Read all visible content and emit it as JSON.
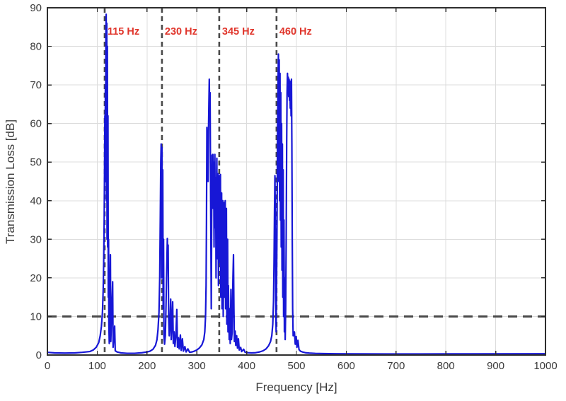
{
  "figure": {
    "xlabel": "Frequency [Hz]",
    "ylabel": "Transmission Loss [dB]",
    "background": "#ffffff"
  },
  "style": {
    "curve_color": "#1717d6",
    "curve_width": 2.2,
    "dash_color": "#4a4a4a",
    "grid_color": "#dcdcdc",
    "spine_color": "#2e2e2e",
    "tick_label_color": "#3a3a3a",
    "annotation_color": "#e0352b",
    "tick_font_size": 15,
    "annotation_font_size": 14.5
  },
  "chart_data": {
    "type": "line",
    "title": "",
    "xlabel": "Frequency [Hz]",
    "ylabel": "Transmission Loss [dB]",
    "xlim": [
      0,
      1000
    ],
    "ylim": [
      0,
      90
    ],
    "xticks": [
      0,
      100,
      200,
      300,
      400,
      500,
      600,
      700,
      800,
      900,
      1000
    ],
    "yticks": [
      0,
      10,
      20,
      30,
      40,
      50,
      60,
      70,
      80,
      90
    ],
    "grid": true,
    "legend": null,
    "reference_lines": {
      "horizontal": [
        {
          "value": 10,
          "style": "dashed",
          "width": 3,
          "dash": [
            13,
            8
          ]
        }
      ],
      "vertical": [
        {
          "value": 115,
          "label": "115 Hz",
          "style": "dashed",
          "width": 2.6,
          "dash": [
            7,
            5
          ]
        },
        {
          "value": 230,
          "label": "230 Hz",
          "style": "dashed",
          "width": 2.6,
          "dash": [
            7,
            5
          ]
        },
        {
          "value": 345,
          "label": "345 Hz",
          "style": "dashed",
          "width": 2.6,
          "dash": [
            7,
            5
          ]
        },
        {
          "value": 460,
          "label": "460 Hz",
          "style": "dashed",
          "width": 2.6,
          "dash": [
            7,
            5
          ]
        }
      ]
    },
    "annotations": [
      {
        "text": "115 Hz",
        "x": 115,
        "y_db": 83
      },
      {
        "text": "230 Hz",
        "x": 230,
        "y_db": 83
      },
      {
        "text": "345 Hz",
        "x": 345,
        "y_db": 83
      },
      {
        "text": "460 Hz",
        "x": 460,
        "y_db": 83
      }
    ],
    "series": [
      {
        "name": "transmission-loss",
        "points": [
          [
            0,
            0.7
          ],
          [
            15,
            0.55
          ],
          [
            35,
            0.5
          ],
          [
            55,
            0.55
          ],
          [
            70,
            0.7
          ],
          [
            85,
            0.9
          ],
          [
            92,
            1.3
          ],
          [
            98,
            2
          ],
          [
            103,
            3.2
          ],
          [
            106,
            5
          ],
          [
            108.5,
            7.5
          ],
          [
            110.5,
            11
          ],
          [
            112,
            17
          ],
          [
            113,
            24
          ],
          [
            114,
            35
          ],
          [
            114.8,
            50
          ],
          [
            115.4,
            62
          ],
          [
            115.9,
            45
          ],
          [
            116.4,
            70
          ],
          [
            116.9,
            55
          ],
          [
            117.4,
            83
          ],
          [
            118,
            88.3
          ],
          [
            118.6,
            40
          ],
          [
            119.2,
            86
          ],
          [
            119.8,
            30
          ],
          [
            120.4,
            80
          ],
          [
            121,
            28
          ],
          [
            121.6,
            62
          ],
          [
            122.2,
            15
          ],
          [
            122.8,
            30
          ],
          [
            123.4,
            8
          ],
          [
            124.2,
            3
          ],
          [
            126.5,
            26
          ],
          [
            127.3,
            3.5
          ],
          [
            131,
            19
          ],
          [
            131.9,
            2
          ],
          [
            135,
            7.5
          ],
          [
            136.2,
            1.1
          ],
          [
            140,
            0.8
          ],
          [
            148,
            0.55
          ],
          [
            160,
            0.45
          ],
          [
            175,
            0.45
          ],
          [
            190,
            0.6
          ],
          [
            200,
            0.8
          ],
          [
            206,
            1
          ],
          [
            212,
            1.5
          ],
          [
            217,
            2.5
          ],
          [
            220,
            4
          ],
          [
            222,
            6.5
          ],
          [
            224,
            11
          ],
          [
            225.5,
            20
          ],
          [
            226.6,
            35
          ],
          [
            227.6,
            50
          ],
          [
            228.4,
            54.7
          ],
          [
            229.2,
            20
          ],
          [
            230,
            53.8
          ],
          [
            230.8,
            25
          ],
          [
            231.6,
            48
          ],
          [
            232.4,
            12
          ],
          [
            233.2,
            30
          ],
          [
            234,
            5
          ],
          [
            235.2,
            2.8
          ],
          [
            236.8,
            5
          ],
          [
            238,
            12
          ],
          [
            239.5,
            22
          ],
          [
            240.8,
            30.2
          ],
          [
            241.6,
            24
          ],
          [
            242.4,
            28.5
          ],
          [
            243.4,
            10
          ],
          [
            244.6,
            5
          ],
          [
            246,
            8
          ],
          [
            247.5,
            14.5
          ],
          [
            248.6,
            4
          ],
          [
            250,
            8
          ],
          [
            251.5,
            13.8
          ],
          [
            252.8,
            3
          ],
          [
            254.5,
            6
          ],
          [
            256,
            2.2
          ],
          [
            258,
            5
          ],
          [
            259.8,
            11.8
          ],
          [
            261.2,
            2
          ],
          [
            263,
            4.5
          ],
          [
            264.6,
            1.6
          ],
          [
            267,
            5.2
          ],
          [
            268.6,
            1.2
          ],
          [
            271,
            4.2
          ],
          [
            273,
            1
          ],
          [
            276,
            2.2
          ],
          [
            278.5,
            0.8
          ],
          [
            282,
            1.6
          ],
          [
            285.5,
            0.7
          ],
          [
            290,
            0.8
          ],
          [
            295,
            1
          ],
          [
            300,
            1.3
          ],
          [
            305,
            1.8
          ],
          [
            310,
            2.6
          ],
          [
            314,
            4
          ],
          [
            316,
            6
          ],
          [
            317.5,
            10
          ],
          [
            318.6,
            18
          ],
          [
            319.4,
            35
          ],
          [
            320.2,
            59
          ],
          [
            321,
            50
          ],
          [
            321.8,
            55
          ],
          [
            322.6,
            45
          ],
          [
            323.4,
            58
          ],
          [
            324.2,
            65
          ],
          [
            325,
            71.5
          ],
          [
            325.8,
            62
          ],
          [
            326.6,
            68
          ],
          [
            327.4,
            48
          ],
          [
            328.2,
            30
          ],
          [
            329,
            12
          ],
          [
            329.8,
            35
          ],
          [
            330.6,
            51.8
          ],
          [
            331.4,
            44
          ],
          [
            332.2,
            52
          ],
          [
            333,
            38
          ],
          [
            333.8,
            50
          ],
          [
            334.6,
            28
          ],
          [
            335.4,
            48
          ],
          [
            336.2,
            52
          ],
          [
            337,
            33
          ],
          [
            337.8,
            46
          ],
          [
            338.6,
            20
          ],
          [
            339.4,
            43
          ],
          [
            340.2,
            51
          ],
          [
            341,
            25
          ],
          [
            341.8,
            40
          ],
          [
            342.6,
            47
          ],
          [
            343.4,
            18
          ],
          [
            344.2,
            38
          ],
          [
            345,
            46.5
          ],
          [
            345.8,
            24
          ],
          [
            346.6,
            42
          ],
          [
            347.4,
            46.8
          ],
          [
            348.2,
            15
          ],
          [
            349,
            35
          ],
          [
            349.8,
            42
          ],
          [
            350.6,
            12
          ],
          [
            351.4,
            30
          ],
          [
            352.2,
            40
          ],
          [
            353,
            10
          ],
          [
            353.8,
            28
          ],
          [
            354.6,
            39.5
          ],
          [
            355.4,
            15
          ],
          [
            356.2,
            33
          ],
          [
            357,
            40
          ],
          [
            357.8,
            12
          ],
          [
            358.6,
            30
          ],
          [
            359.4,
            38
          ],
          [
            360.2,
            8
          ],
          [
            361,
            24
          ],
          [
            361.8,
            30
          ],
          [
            362.6,
            6
          ],
          [
            363.4,
            18
          ],
          [
            364.2,
            10
          ],
          [
            365,
            4
          ],
          [
            366,
            12
          ],
          [
            367,
            3
          ],
          [
            368.5,
            17
          ],
          [
            369.6,
            4
          ],
          [
            371,
            6
          ],
          [
            372.5,
            20
          ],
          [
            373.6,
            26
          ],
          [
            374.5,
            12
          ],
          [
            375.4,
            3.5
          ],
          [
            377,
            6.2
          ],
          [
            378.2,
            2.5
          ],
          [
            380,
            5
          ],
          [
            381.6,
            1.8
          ],
          [
            383.5,
            4.2
          ],
          [
            385.2,
            1.3
          ],
          [
            388,
            2
          ],
          [
            390,
            0.9
          ],
          [
            394,
            1.5
          ],
          [
            397,
            0.7
          ],
          [
            403,
            0.6
          ],
          [
            410,
            0.55
          ],
          [
            418,
            0.6
          ],
          [
            426,
            0.8
          ],
          [
            433,
            1.1
          ],
          [
            439,
            1.6
          ],
          [
            444,
            2.4
          ],
          [
            448,
            3.5
          ],
          [
            450.5,
            5
          ],
          [
            452.5,
            8
          ],
          [
            454,
            14
          ],
          [
            455,
            24
          ],
          [
            456,
            38
          ],
          [
            456.8,
            46.5
          ],
          [
            457.6,
            35
          ],
          [
            458.4,
            15
          ],
          [
            459.2,
            6
          ],
          [
            460,
            18
          ],
          [
            460.8,
            30
          ],
          [
            461.5,
            45
          ],
          [
            462.2,
            60
          ],
          [
            463,
            70
          ],
          [
            463.8,
            78
          ],
          [
            464.6,
            45
          ],
          [
            465.4,
            76.5
          ],
          [
            466.2,
            40
          ],
          [
            467,
            73
          ],
          [
            467.8,
            35
          ],
          [
            468.6,
            68
          ],
          [
            469.4,
            28
          ],
          [
            470.2,
            60
          ],
          [
            471,
            22
          ],
          [
            471.8,
            54.7
          ],
          [
            472.6,
            15
          ],
          [
            473.4,
            48
          ],
          [
            474.2,
            10
          ],
          [
            475,
            35
          ],
          [
            475.8,
            6
          ],
          [
            476.6,
            20
          ],
          [
            477.4,
            4
          ],
          [
            478.4,
            12
          ],
          [
            479.4,
            30
          ],
          [
            480.4,
            55
          ],
          [
            481.2,
            68
          ],
          [
            482,
            73
          ],
          [
            482.8,
            69
          ],
          [
            483.6,
            72
          ],
          [
            484.4,
            67
          ],
          [
            485.2,
            71.5
          ],
          [
            486,
            66
          ],
          [
            486.8,
            71
          ],
          [
            487.6,
            64
          ],
          [
            488.4,
            70
          ],
          [
            489.2,
            62
          ],
          [
            490,
            71.5
          ],
          [
            490.8,
            55
          ],
          [
            491.6,
            30
          ],
          [
            492.4,
            12
          ],
          [
            493.4,
            5
          ],
          [
            496,
            6
          ],
          [
            497.6,
            2.8
          ],
          [
            499.5,
            4.8
          ],
          [
            501,
            2
          ],
          [
            503,
            3.8
          ],
          [
            505.2,
            1.4
          ],
          [
            508,
            1
          ],
          [
            512,
            0.8
          ],
          [
            518,
            0.6
          ],
          [
            526,
            0.5
          ],
          [
            538,
            0.42
          ],
          [
            555,
            0.38
          ],
          [
            580,
            0.33
          ],
          [
            620,
            0.3
          ],
          [
            680,
            0.28
          ],
          [
            750,
            0.28
          ],
          [
            850,
            0.3
          ],
          [
            1000,
            0.32
          ]
        ]
      }
    ]
  }
}
